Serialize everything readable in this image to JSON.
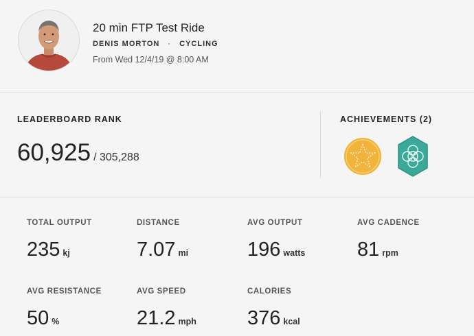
{
  "workout": {
    "title": "20 min FTP Test Ride",
    "instructor": "DENIS MORTON",
    "separator": "·",
    "discipline": "CYCLING",
    "date": "From Wed 12/4/19 @ 8:00 AM"
  },
  "leaderboard": {
    "label": "LEADERBOARD RANK",
    "rank": "60,925",
    "total": "/ 305,288"
  },
  "achievements": {
    "label": "ACHIEVEMENTS (2)",
    "badges": [
      {
        "icon": "gold-star-medal-icon",
        "color": "#f0b43c"
      },
      {
        "icon": "teal-flower-hexagon-icon",
        "color": "#3aa99a"
      }
    ]
  },
  "metrics": [
    {
      "label": "TOTAL OUTPUT",
      "value": "235",
      "unit": "kj"
    },
    {
      "label": "DISTANCE",
      "value": "7.07",
      "unit": "mi"
    },
    {
      "label": "AVG OUTPUT",
      "value": "196",
      "unit": "watts"
    },
    {
      "label": "AVG CADENCE",
      "value": "81",
      "unit": "rpm"
    },
    {
      "label": "AVG RESISTANCE",
      "value": "50",
      "unit": "%"
    },
    {
      "label": "AVG SPEED",
      "value": "21.2",
      "unit": "mph"
    },
    {
      "label": "CALORIES",
      "value": "376",
      "unit": "kcal"
    }
  ]
}
